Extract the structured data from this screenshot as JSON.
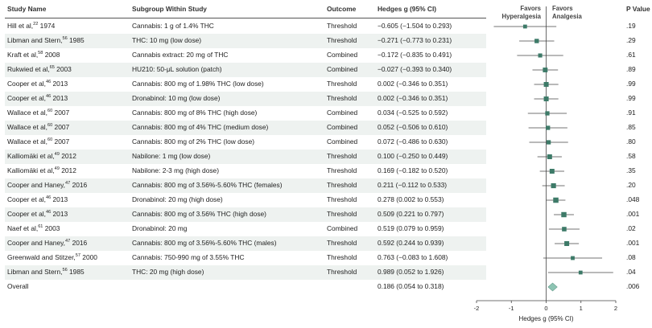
{
  "headers": {
    "study": "Study Name",
    "subgroup": "Subgroup Within Study",
    "outcome": "Outcome",
    "ci": "Hedges g (95% CI)",
    "favors_left": "Favors",
    "favors_left2": "Hyperalgesia",
    "favors_right": "Favors",
    "favors_right2": "Analgesia",
    "pvalue": "P Value"
  },
  "rows": [
    {
      "author": "Hill et al,",
      "ref": "22",
      "year": " 1974",
      "subgroup": "Cannabis: 1 g of 1.4% THC",
      "outcome": "Threshold",
      "ci_text": "−0.605 (−1.504 to 0.293)",
      "p": ".19"
    },
    {
      "author": "Libman and Stern,",
      "ref": "56",
      "year": " 1985",
      "subgroup": "THC: 10 mg (low dose)",
      "outcome": "Threshold",
      "ci_text": "−0.271 (−0.773 to 0.231)",
      "p": ".29"
    },
    {
      "author": "Kraft et al,",
      "ref": "58",
      "year": " 2008",
      "subgroup": "Cannabis extract: 20 mg of THC",
      "outcome": "Combined",
      "ci_text": "−0.172 (−0.835 to 0.491)",
      "p": ".61"
    },
    {
      "author": "Rukwied et al,",
      "ref": "65",
      "year": " 2003",
      "subgroup": "HU210: 50-μL solution (patch)",
      "outcome": "Combined",
      "ci_text": "−0.027 (−0.393 to 0.340)",
      "p": ".89"
    },
    {
      "author": "Cooper et al,",
      "ref": "46",
      "year": " 2013",
      "subgroup": "Cannabis: 800 mg of 1.98% THC (low dose)",
      "outcome": "Threshold",
      "ci_text": "0.002 (−0.346 to 0.351)",
      "p": ".99"
    },
    {
      "author": "Cooper et al,",
      "ref": "46",
      "year": " 2013",
      "subgroup": "Dronabinol: 10 mg (low dose)",
      "outcome": "Threshold",
      "ci_text": "0.002 (−0.346 to 0.351)",
      "p": ".99"
    },
    {
      "author": "Wallace et al,",
      "ref": "60",
      "year": " 2007",
      "subgroup": "Cannabis: 800 mg of 8% THC (high dose)",
      "outcome": "Combined",
      "ci_text": "0.034 (−0.525 to 0.592)",
      "p": ".91"
    },
    {
      "author": "Wallace et al,",
      "ref": "60",
      "year": " 2007",
      "subgroup": "Cannabis: 800 mg of 4% THC (medium dose)",
      "outcome": "Combined",
      "ci_text": "0.052 (−0.506 to 0.610)",
      "p": ".85"
    },
    {
      "author": "Wallace et al,",
      "ref": "60",
      "year": " 2007",
      "subgroup": "Cannabis: 800 mg of 2% THC (low dose)",
      "outcome": "Combined",
      "ci_text": "0.072 (−0.486 to 0.630)",
      "p": ".80"
    },
    {
      "author": "Kalliomäki et al,",
      "ref": "49",
      "year": " 2012",
      "subgroup": "Nabilone: 1 mg (low dose)",
      "outcome": "Threshold",
      "ci_text": "0.100 (−0.250 to 0.449)",
      "p": ".58"
    },
    {
      "author": "Kalliomäki et al,",
      "ref": "49",
      "year": " 2012",
      "subgroup": "Nabilone: 2-3 mg (high dose)",
      "outcome": "Threshold",
      "ci_text": "0.169 (−0.182 to 0.520)",
      "p": ".35"
    },
    {
      "author": "Cooper and Haney,",
      "ref": "47",
      "year": " 2016",
      "subgroup": "Cannabis: 800 mg of 3.56%-5.60% THC (females)",
      "outcome": "Threshold",
      "ci_text": "0.211 (−0.112 to 0.533)",
      "p": ".20"
    },
    {
      "author": "Cooper et al,",
      "ref": "46",
      "year": " 2013",
      "subgroup": "Dronabinol: 20 mg (high dose)",
      "outcome": "Threshold",
      "ci_text": "0.278 (0.002 to 0.553)",
      "p": ".048"
    },
    {
      "author": "Cooper et al,",
      "ref": "46",
      "year": " 2013",
      "subgroup": "Cannabis: 800 mg of 3.56% THC (high dose)",
      "outcome": "Threshold",
      "ci_text": "0.509 (0.221 to 0.797)",
      "p": ".001"
    },
    {
      "author": "Naef et al,",
      "ref": "61",
      "year": " 2003",
      "subgroup": "Dronabinol: 20 mg",
      "outcome": "Combined",
      "ci_text": "0.519 (0.079 to 0.959)",
      "p": ".02"
    },
    {
      "author": "Cooper and Haney,",
      "ref": "47",
      "year": " 2016",
      "subgroup": "Cannabis: 800 mg of 3.56%-5.60% THC (males)",
      "outcome": "Threshold",
      "ci_text": "0.592 (0.244 to 0.939)",
      "p": ".001"
    },
    {
      "author": "Greenwald and Stitzer,",
      "ref": "57",
      "year": " 2000",
      "subgroup": "Cannabis: 750-990 mg of 3.55% THC",
      "outcome": "Threshold",
      "ci_text": "0.763 (−0.083 to 1.608)",
      "p": ".08"
    },
    {
      "author": "Libman and Stern,",
      "ref": "56",
      "year": " 1985",
      "subgroup": "THC: 20 mg (high dose)",
      "outcome": "Threshold",
      "ci_text": "0.989 (0.052 to 1.926)",
      "p": ".04"
    }
  ],
  "overall": {
    "label": "Overall",
    "ci_text": "0.186 (0.054 to 0.318)",
    "p": ".006"
  },
  "colors": {
    "marker": "#3d7a68",
    "diamond": "#8dc4b3",
    "band": "#eef2f0",
    "line": "#444444"
  },
  "chart_data": {
    "type": "forest",
    "xlabel": "Hedges g (95% CI)",
    "xlim": [
      -2,
      2
    ],
    "xticks": [
      -2,
      -1,
      0,
      1,
      2
    ],
    "reference_line": 0,
    "studies": [
      {
        "g": -0.605,
        "lo": -1.504,
        "hi": 0.293
      },
      {
        "g": -0.271,
        "lo": -0.773,
        "hi": 0.231
      },
      {
        "g": -0.172,
        "lo": -0.835,
        "hi": 0.491
      },
      {
        "g": -0.027,
        "lo": -0.393,
        "hi": 0.34
      },
      {
        "g": 0.002,
        "lo": -0.346,
        "hi": 0.351
      },
      {
        "g": 0.002,
        "lo": -0.346,
        "hi": 0.351
      },
      {
        "g": 0.034,
        "lo": -0.525,
        "hi": 0.592
      },
      {
        "g": 0.052,
        "lo": -0.506,
        "hi": 0.61
      },
      {
        "g": 0.072,
        "lo": -0.486,
        "hi": 0.63
      },
      {
        "g": 0.1,
        "lo": -0.25,
        "hi": 0.449
      },
      {
        "g": 0.169,
        "lo": -0.182,
        "hi": 0.52
      },
      {
        "g": 0.211,
        "lo": -0.112,
        "hi": 0.533
      },
      {
        "g": 0.278,
        "lo": 0.002,
        "hi": 0.553
      },
      {
        "g": 0.509,
        "lo": 0.221,
        "hi": 0.797
      },
      {
        "g": 0.519,
        "lo": 0.079,
        "hi": 0.959
      },
      {
        "g": 0.592,
        "lo": 0.244,
        "hi": 0.939
      },
      {
        "g": 0.763,
        "lo": -0.083,
        "hi": 1.608
      },
      {
        "g": 0.989,
        "lo": 0.052,
        "hi": 1.926
      }
    ],
    "overall": {
      "g": 0.186,
      "lo": 0.054,
      "hi": 0.318
    }
  }
}
